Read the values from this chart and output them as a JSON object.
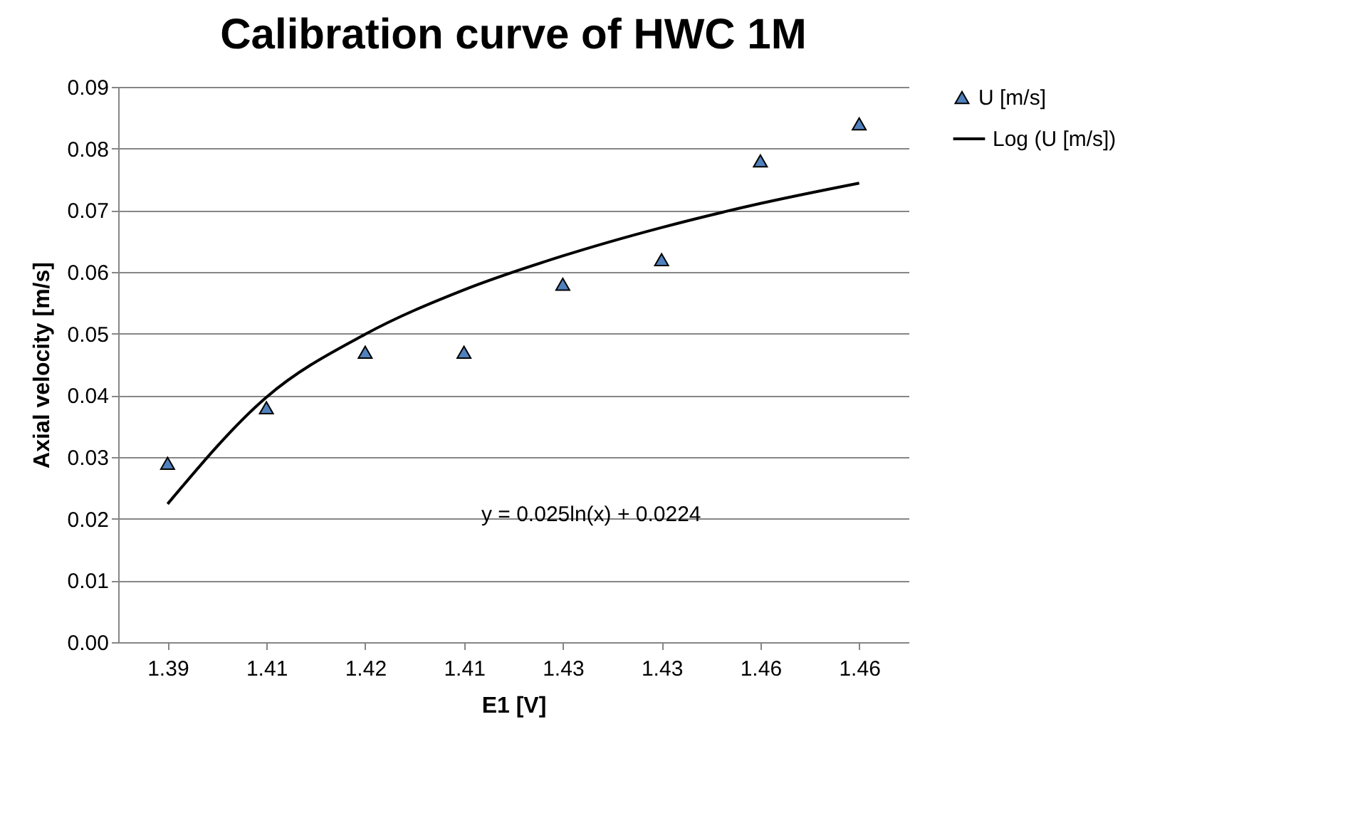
{
  "chart_data": {
    "type": "scatter",
    "title": "Calibration curve of HWC 1M",
    "xlabel": "E1 [V]",
    "ylabel": "Axial velocity [m/s]",
    "categories": [
      "1.39",
      "1.41",
      "1.42",
      "1.41",
      "1.43",
      "1.43",
      "1.46",
      "1.46"
    ],
    "series": [
      {
        "name": "U [m/s]",
        "color": "#4f81bd",
        "marker": "triangle",
        "values": [
          0.029,
          0.038,
          0.047,
          0.047,
          0.058,
          0.062,
          0.078,
          0.084
        ]
      },
      {
        "name": "Log (U [m/s])",
        "type": "line",
        "color": "#000000",
        "values": [
          0.0224,
          0.0397,
          0.0499,
          0.0571,
          0.0626,
          0.0672,
          0.0711,
          0.0744
        ]
      }
    ],
    "ylim": [
      0,
      0.09
    ],
    "yticks": [
      {
        "value": 0,
        "label": "0.00"
      },
      {
        "value": 0.01,
        "label": "0.01"
      },
      {
        "value": 0.02,
        "label": "0.02"
      },
      {
        "value": 0.03,
        "label": "0.03"
      },
      {
        "value": 0.04,
        "label": "0.04"
      },
      {
        "value": 0.05,
        "label": "0.05"
      },
      {
        "value": 0.06,
        "label": "0.06"
      },
      {
        "value": 0.07,
        "label": "0.07"
      },
      {
        "value": 0.08,
        "label": "0.08"
      },
      {
        "value": 0.09,
        "label": "0.09"
      }
    ],
    "grid": "y",
    "legend": "right",
    "annotations": [
      "y = 0.025ln(x) + 0.0224"
    ]
  }
}
